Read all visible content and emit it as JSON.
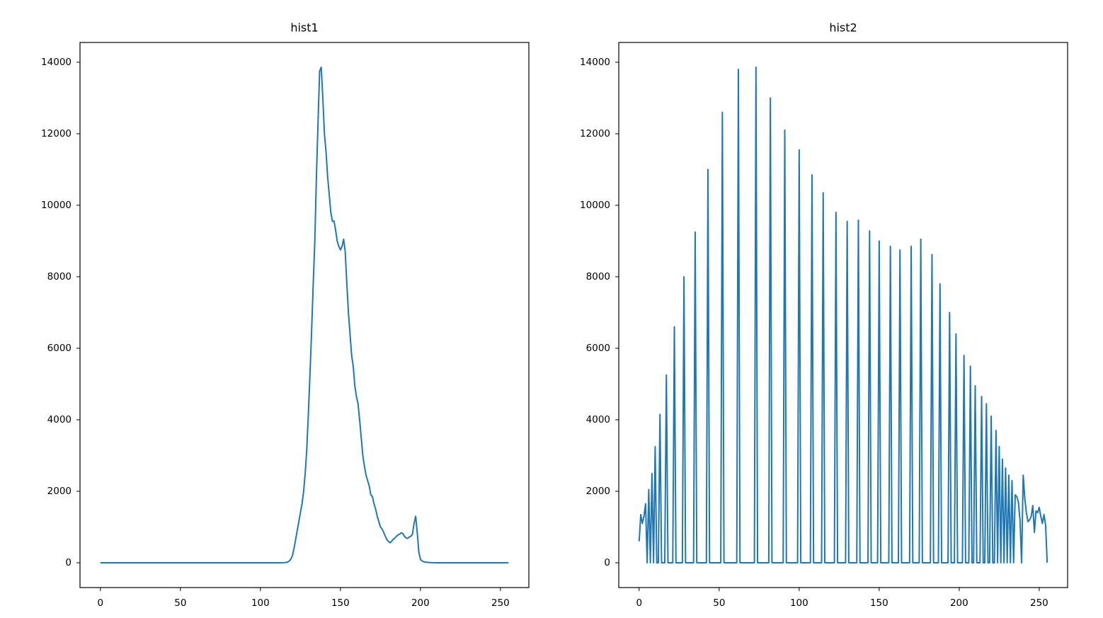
{
  "chart_data": [
    {
      "type": "line",
      "title": "hist1",
      "xlim": [
        -12.75,
        267.75
      ],
      "xticks": [
        0,
        50,
        100,
        150,
        200,
        250
      ],
      "ylim": [
        -693,
        14553
      ],
      "yticks": [
        0,
        2000,
        4000,
        6000,
        8000,
        10000,
        12000,
        14000
      ],
      "series": [
        {
          "color": "#1f77b4",
          "values": [
            0,
            0,
            0,
            0,
            0,
            0,
            0,
            0,
            0,
            0,
            0,
            0,
            0,
            0,
            0,
            0,
            0,
            0,
            0,
            0,
            0,
            0,
            0,
            0,
            0,
            0,
            0,
            0,
            0,
            0,
            0,
            0,
            0,
            0,
            0,
            0,
            0,
            0,
            0,
            0,
            0,
            0,
            0,
            0,
            0,
            0,
            0,
            0,
            0,
            0,
            0,
            0,
            0,
            0,
            0,
            0,
            0,
            0,
            0,
            0,
            0,
            0,
            0,
            0,
            0,
            0,
            0,
            0,
            0,
            0,
            0,
            0,
            0,
            0,
            0,
            0,
            0,
            0,
            0,
            0,
            0,
            0,
            0,
            0,
            0,
            0,
            0,
            0,
            0,
            0,
            0,
            0,
            0,
            0,
            0,
            0,
            0,
            0,
            0,
            0,
            0,
            0,
            0,
            0,
            0,
            0,
            0,
            0,
            0,
            0,
            0,
            0,
            0,
            0,
            2,
            5,
            10,
            20,
            50,
            100,
            200,
            400,
            650,
            900,
            1150,
            1400,
            1650,
            2000,
            2500,
            3200,
            4200,
            5300,
            6500,
            7800,
            9000,
            10800,
            12300,
            13750,
            13860,
            13000,
            12000,
            11500,
            10800,
            10300,
            9800,
            9550,
            9560,
            9300,
            9000,
            8850,
            8750,
            8850,
            9050,
            8700,
            7800,
            7000,
            6400,
            5800,
            5500,
            4950,
            4650,
            4450,
            4000,
            3500,
            3000,
            2700,
            2450,
            2300,
            2150,
            1900,
            1850,
            1650,
            1500,
            1300,
            1150,
            1000,
            950,
            850,
            750,
            650,
            600,
            560,
            600,
            660,
            690,
            740,
            780,
            800,
            840,
            820,
            740,
            700,
            680,
            720,
            740,
            800,
            1100,
            1300,
            850,
            300,
            100,
            50,
            30,
            20,
            15,
            10,
            5,
            3,
            2,
            1,
            0,
            0,
            0,
            0,
            0,
            0,
            0,
            0,
            0,
            0,
            0,
            0,
            0,
            0,
            0,
            0,
            0,
            0,
            0,
            0,
            0,
            0,
            0,
            0,
            0,
            0,
            0,
            0,
            0,
            0,
            0,
            0,
            0,
            0,
            0,
            0,
            0,
            0,
            0,
            0,
            0,
            0,
            0,
            0,
            0,
            0
          ]
        }
      ]
    },
    {
      "type": "line",
      "title": "hist2",
      "xlim": [
        -12.75,
        267.75
      ],
      "xticks": [
        0,
        50,
        100,
        150,
        200,
        250
      ],
      "ylim": [
        -693,
        14553
      ],
      "yticks": [
        0,
        2000,
        4000,
        6000,
        8000,
        10000,
        12000,
        14000
      ],
      "series": [
        {
          "color": "#1f77b4",
          "values": [
            600,
            1350,
            1100,
            1300,
            1650,
            0,
            2050,
            0,
            2500,
            0,
            3250,
            0,
            0,
            4150,
            0,
            0,
            0,
            5250,
            0,
            0,
            0,
            0,
            6600,
            0,
            0,
            0,
            0,
            0,
            8000,
            0,
            0,
            0,
            0,
            0,
            0,
            9250,
            0,
            0,
            0,
            0,
            0,
            0,
            0,
            11000,
            0,
            0,
            0,
            0,
            0,
            0,
            0,
            0,
            12600,
            0,
            0,
            0,
            0,
            0,
            0,
            0,
            0,
            0,
            13800,
            0,
            0,
            0,
            0,
            0,
            0,
            0,
            0,
            0,
            0,
            13860,
            0,
            0,
            0,
            0,
            0,
            0,
            0,
            0,
            13000,
            0,
            0,
            0,
            0,
            0,
            0,
            0,
            0,
            12100,
            0,
            0,
            0,
            0,
            0,
            0,
            0,
            0,
            11550,
            0,
            0,
            0,
            0,
            0,
            0,
            0,
            10850,
            0,
            0,
            0,
            0,
            0,
            0,
            10350,
            0,
            0,
            0,
            0,
            0,
            0,
            0,
            9800,
            0,
            0,
            0,
            0,
            0,
            0,
            9550,
            0,
            0,
            0,
            0,
            0,
            0,
            9580,
            0,
            0,
            0,
            0,
            0,
            0,
            9280,
            0,
            0,
            0,
            0,
            0,
            9000,
            0,
            0,
            0,
            0,
            0,
            0,
            8850,
            0,
            0,
            0,
            0,
            0,
            8750,
            0,
            0,
            0,
            0,
            0,
            0,
            8850,
            0,
            0,
            0,
            0,
            0,
            9050,
            0,
            0,
            0,
            0,
            0,
            0,
            8620,
            0,
            0,
            0,
            0,
            7800,
            0,
            0,
            0,
            0,
            0,
            7000,
            0,
            0,
            0,
            6400,
            0,
            0,
            0,
            0,
            5800,
            0,
            0,
            0,
            5500,
            0,
            0,
            4950,
            0,
            0,
            0,
            4650,
            0,
            0,
            4450,
            0,
            0,
            4100,
            0,
            0,
            3700,
            0,
            3250,
            0,
            2900,
            0,
            2650,
            0,
            2450,
            0,
            2300,
            0,
            1900,
            1850,
            1700,
            1200,
            0,
            2450,
            1800,
            1400,
            1150,
            1200,
            1300,
            1600,
            850,
            1450,
            1400,
            1550,
            1300,
            1100,
            1350,
            1050,
            0
          ]
        }
      ]
    }
  ]
}
